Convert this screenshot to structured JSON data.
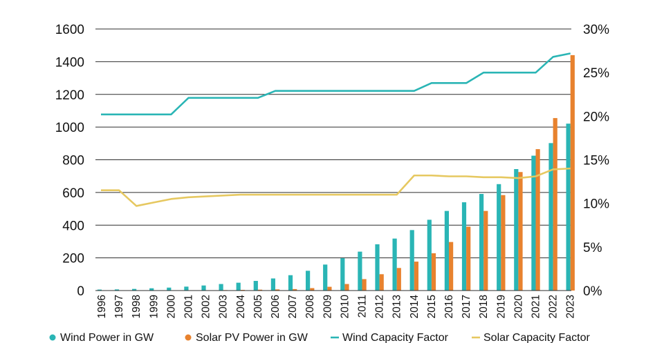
{
  "chart_data": {
    "type": "bar",
    "categories": [
      "1996",
      "1997",
      "1998",
      "1999",
      "2000",
      "2001",
      "2002",
      "2003",
      "2004",
      "2005",
      "2006",
      "2007",
      "2008",
      "2009",
      "2010",
      "2011",
      "2012",
      "2013",
      "2014",
      "2015",
      "2016",
      "2017",
      "2018",
      "2019",
      "2020",
      "2021",
      "2022",
      "2023"
    ],
    "series": [
      {
        "name": "Wind Power in GW",
        "type": "bar",
        "axis": "left",
        "color": "#2ab5b5",
        "values": [
          6,
          7,
          10,
          14,
          18,
          24,
          31,
          40,
          48,
          59,
          74,
          94,
          121,
          159,
          198,
          238,
          283,
          318,
          370,
          433,
          487,
          540,
          591,
          651,
          743,
          825,
          902,
          1021
        ]
      },
      {
        "name": "Solar PV Power in GW",
        "type": "bar",
        "axis": "left",
        "color": "#e8822e",
        "values": [
          0.3,
          0.4,
          0.5,
          0.8,
          1.2,
          1.6,
          2.2,
          2.9,
          4,
          5.4,
          7,
          9,
          15,
          23,
          40,
          70,
          100,
          138,
          177,
          228,
          297,
          391,
          487,
          584,
          725,
          865,
          1055,
          1440
        ]
      },
      {
        "name": "Wind Capacity Factor",
        "type": "line",
        "axis": "right",
        "color": "#2ab5b5",
        "values": [
          20.2,
          20.2,
          20.2,
          20.2,
          20.2,
          22.1,
          22.1,
          22.1,
          22.1,
          22.1,
          22.9,
          22.9,
          22.9,
          22.9,
          22.9,
          22.9,
          22.9,
          22.9,
          22.9,
          23.8,
          23.8,
          23.8,
          25.0,
          25.0,
          25.0,
          25.0,
          26.8,
          27.2
        ]
      },
      {
        "name": "Solar Capacity Factor",
        "type": "line",
        "axis": "right",
        "color": "#e6c860",
        "values": [
          11.5,
          11.5,
          9.7,
          10.1,
          10.5,
          10.7,
          10.8,
          10.9,
          11.0,
          11.0,
          11.0,
          11.0,
          11.0,
          11.0,
          11.0,
          11.0,
          11.0,
          11.0,
          13.2,
          13.2,
          13.1,
          13.1,
          13.0,
          13.0,
          12.9,
          13.1,
          13.9,
          14.0
        ]
      }
    ],
    "left_axis": {
      "min": 0,
      "max": 1600,
      "ticks": [
        0,
        200,
        400,
        600,
        800,
        1000,
        1200,
        1400,
        1600
      ],
      "tick_labels": [
        "0",
        "200",
        "400",
        "600",
        "800",
        "1000",
        "1200",
        "1400",
        "1600"
      ]
    },
    "right_axis": {
      "min": 0,
      "max": 30,
      "ticks": [
        0,
        5,
        10,
        15,
        20,
        25,
        30
      ],
      "tick_labels": [
        "0%",
        "5%",
        "10%",
        "15%",
        "20%",
        "25%",
        "30%"
      ]
    },
    "grid": "horizontal",
    "legend_placement": "bottom",
    "xlabel": "",
    "ylabel": "",
    "title": ""
  }
}
